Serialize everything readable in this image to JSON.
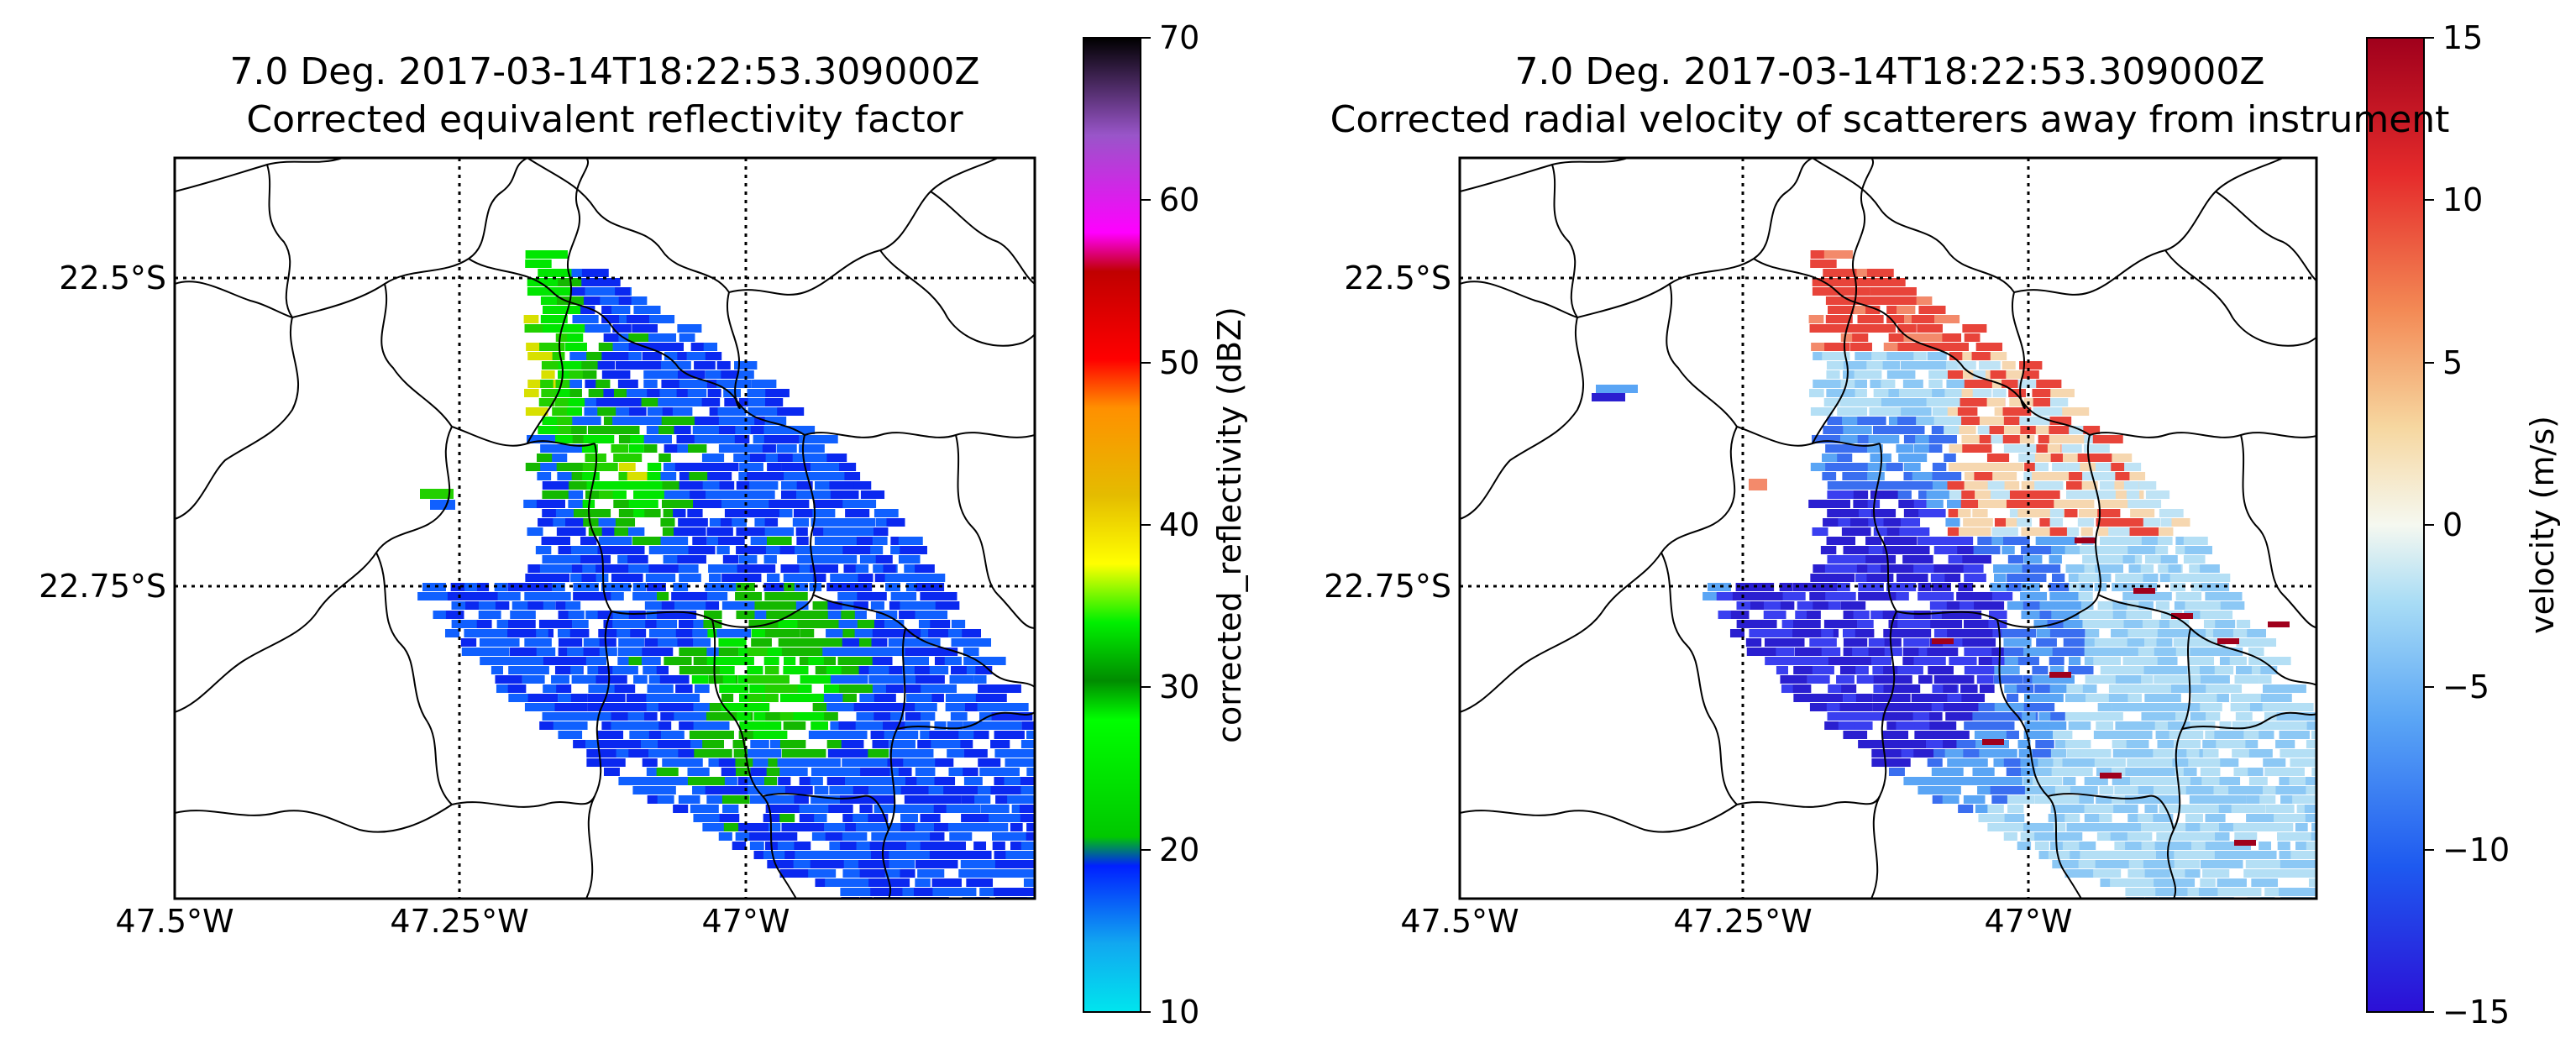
{
  "figure": {
    "panels": [
      {
        "id": "reflectivity",
        "title_line1": "7.0 Deg. 2017-03-14T18:22:53.309000Z",
        "title_line2": "Corrected equivalent reflectivity factor",
        "lon_ticks": [
          "47.5°W",
          "47.25°W",
          "47°W"
        ],
        "lat_ticks": [
          "22.5°S",
          "22.75°S"
        ],
        "colorbar": {
          "label": "corrected_reflectivity (dBZ)",
          "min": 10,
          "max": 70,
          "ticks": [
            "10",
            "20",
            "30",
            "40",
            "50",
            "60",
            "70"
          ],
          "colormap": "NWSRef"
        }
      },
      {
        "id": "velocity",
        "title_line1": "7.0 Deg. 2017-03-14T18:22:53.309000Z",
        "title_line2": "Corrected radial velocity of scatterers away from instrument",
        "lon_ticks": [
          "47.5°W",
          "47.25°W",
          "47°W"
        ],
        "lat_ticks": [
          "22.5°S",
          "22.75°S"
        ],
        "colorbar": {
          "label": "velocity (m/s)",
          "min": -15,
          "max": 15,
          "ticks": [
            "−15",
            "−10",
            "−5",
            "0",
            "5",
            "10",
            "15"
          ],
          "colormap": "RdYlBu_r"
        }
      }
    ]
  }
}
